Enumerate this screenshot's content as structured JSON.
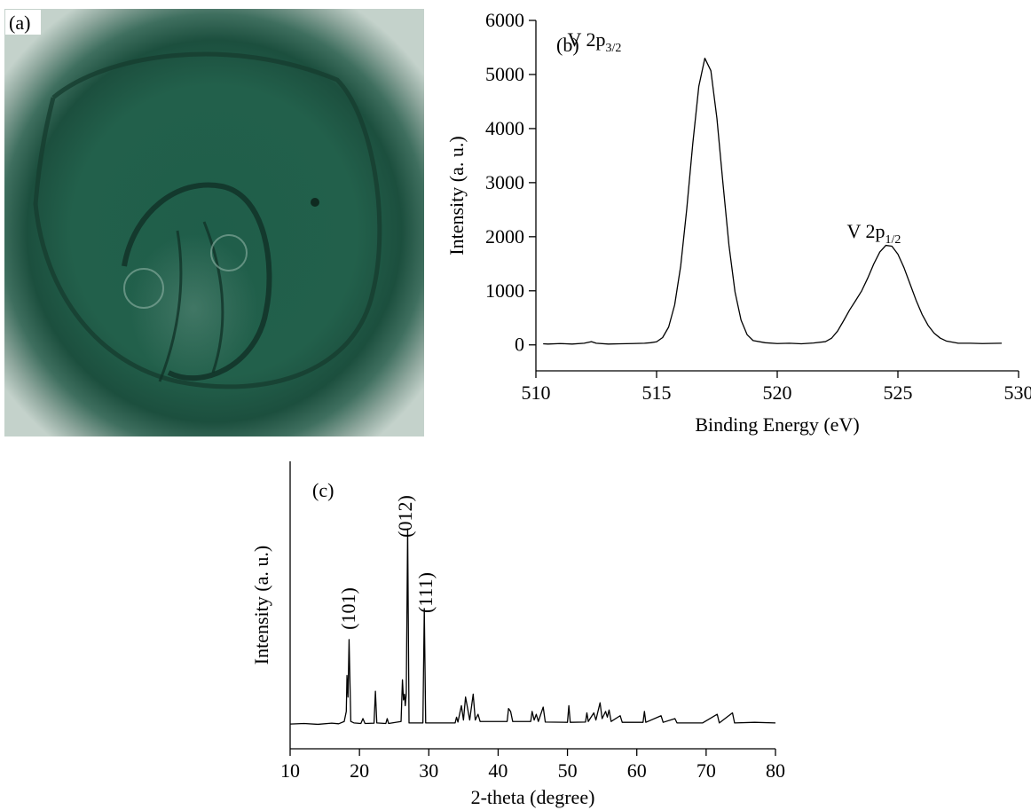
{
  "image": {
    "label": "(a)"
  },
  "chart_data": [
    {
      "type": "line",
      "label": "(b)",
      "x_label": "Binding Energy (eV)",
      "y_label": "Intensity (a. u.)",
      "annotations": [
        {
          "text": "V 2p",
          "sub": "3/2"
        },
        {
          "text": "V 2p",
          "sub": "1/2"
        }
      ],
      "xlim": [
        510,
        530
      ],
      "xticks": [
        510,
        515,
        520,
        525,
        530
      ],
      "ylim": [
        -480,
        6000
      ],
      "yticks": [
        0,
        1000,
        2000,
        3000,
        4000,
        5000,
        6000
      ],
      "series": [
        {
          "color": "#000000",
          "x": [
            510.3,
            510.5,
            511,
            511.5,
            512,
            512.3,
            512.5,
            513,
            513.5,
            514,
            514.5,
            514.75,
            515,
            515.25,
            515.5,
            515.75,
            516,
            516.25,
            516.5,
            516.75,
            517,
            517.25,
            517.5,
            517.75,
            518,
            518.25,
            518.5,
            518.75,
            519,
            519.5,
            520,
            520.5,
            521,
            521.5,
            522,
            522.25,
            522.5,
            522.75,
            523,
            523.25,
            523.5,
            523.75,
            524,
            524.25,
            524.5,
            524.75,
            525,
            525.25,
            525.5,
            525.75,
            526,
            526.25,
            526.5,
            526.75,
            527,
            527.5,
            528,
            528.5,
            529,
            529.3
          ],
          "values": [
            20,
            15,
            25,
            15,
            30,
            60,
            30,
            15,
            20,
            25,
            30,
            40,
            57,
            135,
            330,
            740,
            1460,
            2510,
            3720,
            4780,
            5300,
            5070,
            4190,
            2990,
            1840,
            980,
            460,
            190,
            80,
            40,
            25,
            30,
            20,
            35,
            60,
            123,
            255,
            447,
            647,
            820,
            1000,
            1235,
            1497,
            1717,
            1840,
            1825,
            1678,
            1430,
            1130,
            829,
            565,
            361,
            217,
            126,
            72,
            30,
            30,
            25,
            28,
            30
          ]
        }
      ]
    },
    {
      "type": "line",
      "label": "(c)",
      "x_label": "2-theta (degree)",
      "y_label": "Intensity (a. u.)",
      "annotations": [
        {
          "text": "(101)"
        },
        {
          "text": "(012)"
        },
        {
          "text": "(111)"
        }
      ],
      "xlim": [
        10,
        80
      ],
      "xticks": [
        10,
        20,
        30,
        40,
        50,
        60,
        70,
        80
      ],
      "ylim": [
        0,
        100
      ],
      "series": [
        {
          "color": "#000000",
          "x": [
            10.0,
            12.0,
            14.0,
            16.0,
            17.0,
            17.8,
            18.1,
            18.2,
            18.35,
            18.5,
            18.75,
            19.2,
            20.2,
            20.5,
            20.8,
            22.1,
            22.3,
            22.5,
            23.8,
            24.0,
            24.2,
            26.0,
            26.2,
            26.35,
            26.5,
            26.6,
            26.75,
            26.95,
            27.15,
            29.15,
            29.35,
            29.55,
            33.8,
            34.0,
            34.2,
            34.7,
            35.0,
            35.3,
            35.6,
            35.9,
            36.4,
            36.7,
            37.1,
            37.4,
            41.3,
            41.5,
            41.8,
            42.1,
            44.7,
            44.9,
            45.2,
            45.5,
            45.8,
            46.5,
            46.8,
            50.0,
            50.2,
            50.4,
            52.6,
            52.8,
            53.0,
            53.8,
            54.1,
            54.7,
            55.0,
            55.5,
            55.75,
            56.0,
            56.3,
            57.6,
            57.9,
            60.9,
            61.1,
            61.3,
            63.5,
            63.8,
            65.5,
            65.8,
            69.5,
            71.6,
            71.9,
            73.8,
            74.1,
            77.0,
            80.0
          ],
          "values": [
            8.6,
            8.8,
            8.5,
            8.9,
            8.7,
            9.5,
            13,
            25.5,
            18,
            38,
            9.5,
            9,
            8.8,
            10.5,
            8.8,
            8.9,
            20,
            9,
            8.8,
            10.5,
            8.8,
            9.5,
            24,
            17,
            19,
            15,
            19,
            76.5,
            9,
            9,
            48.8,
            9,
            9,
            11,
            9.3,
            15,
            10,
            18,
            14,
            10,
            19,
            10,
            12,
            9.5,
            9.5,
            14,
            13,
            9.5,
            9.5,
            13,
            10,
            12,
            9.5,
            14.5,
            9.3,
            9.2,
            15,
            9.2,
            9.3,
            12.5,
            9.5,
            12.5,
            10,
            16,
            10.5,
            13,
            11,
            13.5,
            9.5,
            11.5,
            9.2,
            9.2,
            13,
            9.2,
            11.5,
            9.2,
            10.5,
            9,
            9,
            12,
            9,
            12.5,
            9,
            9.2,
            9
          ]
        }
      ]
    }
  ]
}
